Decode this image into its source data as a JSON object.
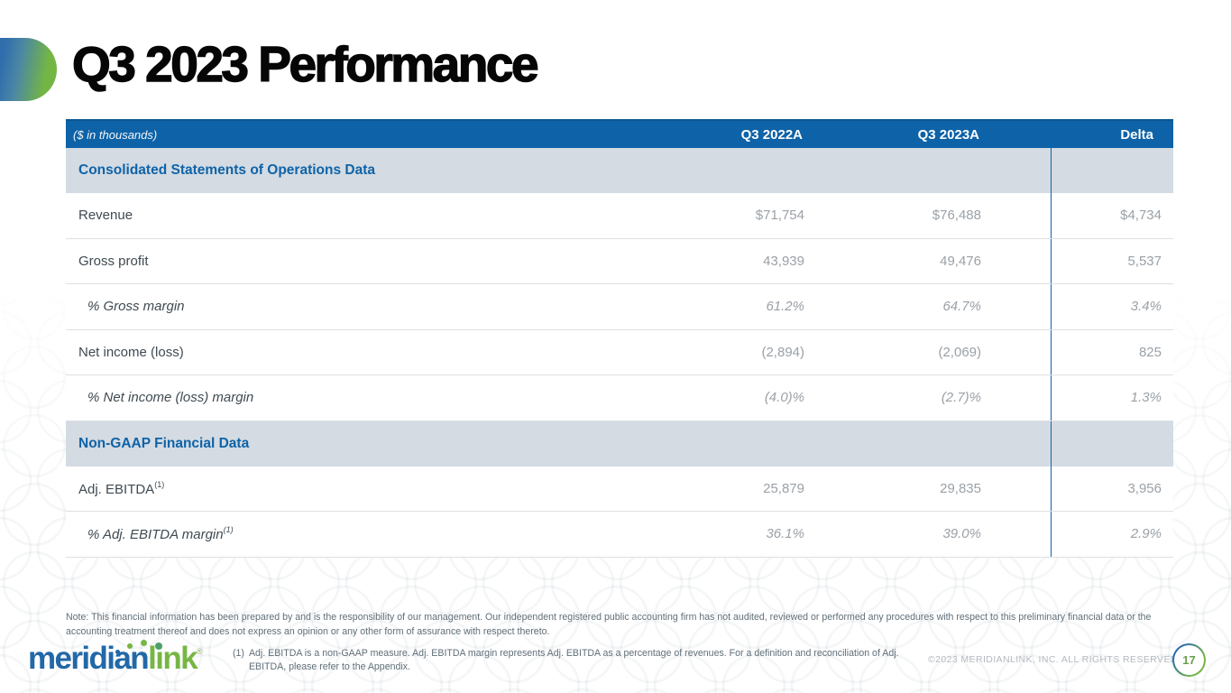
{
  "slide": {
    "title": "Q3 2023 Performance",
    "page_number": "17",
    "copyright": "©2023 MERIDIANLINK, INC. ALL RIGHTS RESERVED.",
    "note": "Note: This financial information has been prepared by and is the responsibility of our management. Our independent registered public accounting firm has not audited, reviewed or performed any procedures with respect to this preliminary financial data or the accounting treatment thereof and does not express an opinion or any other form of assurance with respect thereto.",
    "footnote": {
      "marker": "(1)",
      "text": "Adj. EBITDA is a non-GAAP measure. Adj. EBITDA margin represents Adj. EBITDA as a percentage of revenues. For a definition and reconciliation of Adj. EBITDA, please refer to the Appendix."
    },
    "logo": {
      "text_blue": "meridian",
      "text_green": "link",
      "registered": "®"
    },
    "colors": {
      "header_blue": "#0e63a8",
      "section_bg": "#d4dbe2",
      "brand_blue": "#2268a8",
      "brand_green": "#76b644",
      "value_gray": "#9aa1a7",
      "label_gray": "#3f4a52"
    }
  },
  "table": {
    "unit_label": "($ in thousands)",
    "columns": [
      "Q3 2022A",
      "Q3 2023A",
      "Delta"
    ],
    "rows": [
      {
        "type": "section",
        "label": "Consolidated Statements of Operations Data",
        "values": [
          "",
          "",
          ""
        ]
      },
      {
        "type": "data",
        "label": "Revenue",
        "values": [
          "$71,754",
          "$76,488",
          "$4,734"
        ]
      },
      {
        "type": "data",
        "label": "Gross profit",
        "values": [
          "43,939",
          "49,476",
          "5,537"
        ]
      },
      {
        "type": "pct",
        "label": "% Gross margin",
        "values": [
          "61.2%",
          "64.7%",
          "3.4%"
        ]
      },
      {
        "type": "data",
        "label": "Net income (loss)",
        "values": [
          "(2,894)",
          "(2,069)",
          "825"
        ]
      },
      {
        "type": "pct",
        "label": "% Net income (loss) margin",
        "values": [
          "(4.0)%",
          "(2.7)%",
          "1.3%"
        ]
      },
      {
        "type": "section",
        "label": "Non-GAAP Financial Data",
        "values": [
          "",
          "",
          ""
        ]
      },
      {
        "type": "data",
        "label": "Adj. EBITDA",
        "sup": "(1)",
        "values": [
          "25,879",
          "29,835",
          "3,956"
        ]
      },
      {
        "type": "pct",
        "label": "% Adj. EBITDA margin",
        "sup": "(1)",
        "values": [
          "36.1%",
          "39.0%",
          "2.9%"
        ]
      }
    ]
  }
}
